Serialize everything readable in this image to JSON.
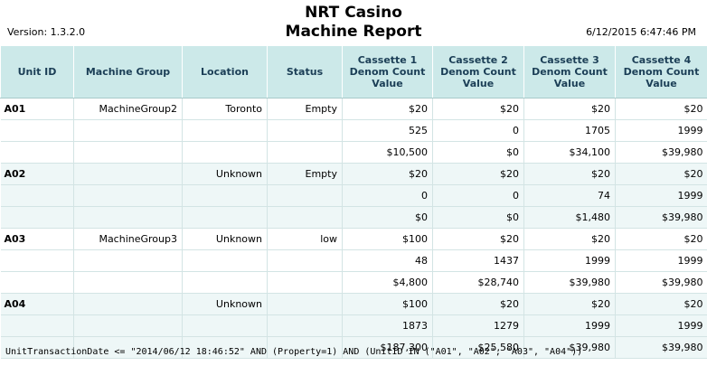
{
  "header": {
    "title_line1": "NRT Casino",
    "title_line2": "Machine Report",
    "version": "Version: 1.3.2.0",
    "datetime": "6/12/2015 6:47:46 PM"
  },
  "columns": [
    "Unit ID",
    "Machine Group",
    "Location",
    "Status",
    "Cassette 1 Denom Count Value",
    "Cassette 2 Denom Count Value",
    "Cassette 3 Denom Count Value",
    "Cassette 4 Denom Count Value"
  ],
  "rows": [
    {
      "cells": [
        "A01",
        "MachineGroup2",
        "Toronto",
        "Empty",
        "$20",
        "$20",
        "$20",
        "$20"
      ]
    },
    {
      "cells": [
        "",
        "",
        "",
        "",
        "525",
        "0",
        "1705",
        "1999"
      ]
    },
    {
      "cells": [
        "",
        "",
        "",
        "",
        "$10,500",
        "$0",
        "$34,100",
        "$39,980"
      ]
    },
    {
      "cells": [
        "A02",
        "",
        "Unknown",
        "Empty",
        "$20",
        "$20",
        "$20",
        "$20"
      ]
    },
    {
      "cells": [
        "",
        "",
        "",
        "",
        "0",
        "0",
        "74",
        "1999"
      ]
    },
    {
      "cells": [
        "",
        "",
        "",
        "",
        "$0",
        "$0",
        "$1,480",
        "$39,980"
      ]
    },
    {
      "cells": [
        "A03",
        "MachineGroup3",
        "Unknown",
        "low",
        "$100",
        "$20",
        "$20",
        "$20"
      ]
    },
    {
      "cells": [
        "",
        "",
        "",
        "",
        "48",
        "1437",
        "1999",
        "1999"
      ]
    },
    {
      "cells": [
        "",
        "",
        "",
        "",
        "$4,800",
        "$28,740",
        "$39,980",
        "$39,980"
      ]
    },
    {
      "cells": [
        "A04",
        "",
        "Unknown",
        "",
        "$100",
        "$20",
        "$20",
        "$20"
      ]
    },
    {
      "cells": [
        "",
        "",
        "",
        "",
        "1873",
        "1279",
        "1999",
        "1999"
      ]
    },
    {
      "cells": [
        "",
        "",
        "",
        "",
        "$187,300",
        "$25,580",
        "$39,980",
        "$39,980"
      ]
    }
  ],
  "footer": {
    "query": "UnitTransactionDate <= \"2014/06/12 18:46:52\" AND (Property=1) AND (UnitID IN (\"A01\", \"A02\", \"A03\", \"A04\"))"
  }
}
